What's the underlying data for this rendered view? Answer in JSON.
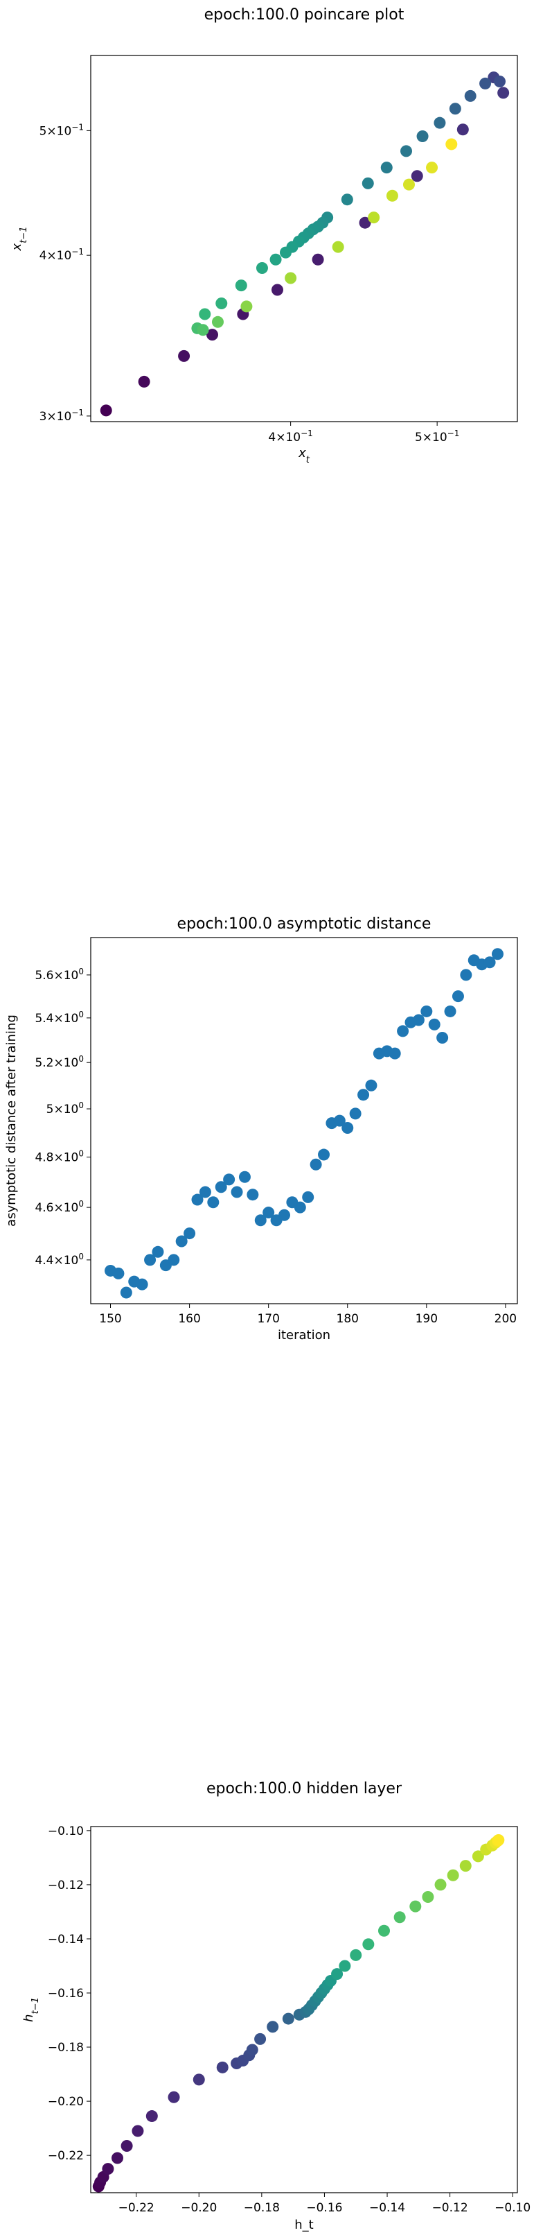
{
  "chart_data": [
    {
      "type": "scatter",
      "title": "epoch:100.0 poincare plot",
      "xlabel": "x_t",
      "ylabel": "x_{t-1}",
      "xscale": "log",
      "yscale": "log",
      "xlim": [
        0.295,
        0.565
      ],
      "ylim": [
        0.297,
        0.572
      ],
      "xticks": [
        {
          "value": 0.4,
          "base": "4×10",
          "exp": "−1"
        },
        {
          "value": 0.5,
          "base": "5×10",
          "exp": "−1"
        }
      ],
      "yticks": [
        {
          "value": 0.3,
          "base": "3×10",
          "exp": "−1"
        },
        {
          "value": 0.4,
          "base": "4×10",
          "exp": "−1"
        },
        {
          "value": 0.5,
          "base": "5×10",
          "exp": "−1"
        }
      ],
      "colormap": "viridis",
      "points": [
        {
          "x": 0.302,
          "y": 0.303,
          "c": 0.0
        },
        {
          "x": 0.32,
          "y": 0.319,
          "c": 0.02
        },
        {
          "x": 0.34,
          "y": 0.334,
          "c": 0.04
        },
        {
          "x": 0.355,
          "y": 0.347,
          "c": 0.05
        },
        {
          "x": 0.372,
          "y": 0.36,
          "c": 0.06
        },
        {
          "x": 0.392,
          "y": 0.376,
          "c": 0.07
        },
        {
          "x": 0.417,
          "y": 0.397,
          "c": 0.08
        },
        {
          "x": 0.448,
          "y": 0.424,
          "c": 0.1
        },
        {
          "x": 0.485,
          "y": 0.461,
          "c": 0.12
        },
        {
          "x": 0.52,
          "y": 0.501,
          "c": 0.14
        },
        {
          "x": 0.553,
          "y": 0.535,
          "c": 0.16
        },
        {
          "x": 0.545,
          "y": 0.55,
          "c": 0.2
        },
        {
          "x": 0.55,
          "y": 0.546,
          "c": 0.24
        },
        {
          "x": 0.538,
          "y": 0.544,
          "c": 0.27
        },
        {
          "x": 0.526,
          "y": 0.532,
          "c": 0.3
        },
        {
          "x": 0.514,
          "y": 0.52,
          "c": 0.32
        },
        {
          "x": 0.502,
          "y": 0.507,
          "c": 0.35
        },
        {
          "x": 0.489,
          "y": 0.495,
          "c": 0.38
        },
        {
          "x": 0.477,
          "y": 0.482,
          "c": 0.4
        },
        {
          "x": 0.463,
          "y": 0.468,
          "c": 0.42
        },
        {
          "x": 0.45,
          "y": 0.455,
          "c": 0.44
        },
        {
          "x": 0.436,
          "y": 0.442,
          "c": 0.46
        },
        {
          "x": 0.423,
          "y": 0.428,
          "c": 0.49
        },
        {
          "x": 0.42,
          "y": 0.424,
          "c": 0.5
        },
        {
          "x": 0.417,
          "y": 0.421,
          "c": 0.51
        },
        {
          "x": 0.414,
          "y": 0.419,
          "c": 0.52
        },
        {
          "x": 0.411,
          "y": 0.416,
          "c": 0.53
        },
        {
          "x": 0.408,
          "y": 0.413,
          "c": 0.54
        },
        {
          "x": 0.405,
          "y": 0.41,
          "c": 0.55
        },
        {
          "x": 0.401,
          "y": 0.406,
          "c": 0.56
        },
        {
          "x": 0.397,
          "y": 0.402,
          "c": 0.57
        },
        {
          "x": 0.391,
          "y": 0.397,
          "c": 0.58
        },
        {
          "x": 0.383,
          "y": 0.391,
          "c": 0.6
        },
        {
          "x": 0.371,
          "y": 0.379,
          "c": 0.62
        },
        {
          "x": 0.36,
          "y": 0.367,
          "c": 0.64
        },
        {
          "x": 0.351,
          "y": 0.36,
          "c": 0.66
        },
        {
          "x": 0.347,
          "y": 0.351,
          "c": 0.7
        },
        {
          "x": 0.35,
          "y": 0.35,
          "c": 0.72
        },
        {
          "x": 0.358,
          "y": 0.355,
          "c": 0.76
        },
        {
          "x": 0.374,
          "y": 0.365,
          "c": 0.82
        },
        {
          "x": 0.4,
          "y": 0.384,
          "c": 0.86
        },
        {
          "x": 0.43,
          "y": 0.406,
          "c": 0.88
        },
        {
          "x": 0.454,
          "y": 0.428,
          "c": 0.9
        },
        {
          "x": 0.467,
          "y": 0.445,
          "c": 0.92
        },
        {
          "x": 0.479,
          "y": 0.454,
          "c": 0.94
        },
        {
          "x": 0.496,
          "y": 0.468,
          "c": 0.96
        },
        {
          "x": 0.511,
          "y": 0.488,
          "c": 1.0
        }
      ]
    },
    {
      "type": "scatter",
      "title": "epoch:100.0 asymptotic distance",
      "xlabel": "iteration",
      "ylabel": "asymptotic distance after training",
      "yscale": "log",
      "xlim": [
        147.5,
        201.5
      ],
      "ylim": [
        4.24,
        5.78
      ],
      "xticks": [
        150,
        160,
        170,
        180,
        190,
        200
      ],
      "yticks": [
        {
          "value": 4.4,
          "base": "4.4×10",
          "exp": "0"
        },
        {
          "value": 4.6,
          "base": "4.6×10",
          "exp": "0"
        },
        {
          "value": 4.8,
          "base": "4.8×10",
          "exp": "0"
        },
        {
          "value": 5.0,
          "base": "5×10",
          "exp": "0"
        },
        {
          "value": 5.2,
          "base": "5.2×10",
          "exp": "0"
        },
        {
          "value": 5.4,
          "base": "5.4×10",
          "exp": "0"
        },
        {
          "value": 5.6,
          "base": "5.6×10",
          "exp": "0"
        }
      ],
      "marker_color": "#1f77b4",
      "x": [
        150,
        151,
        152,
        153,
        154,
        155,
        156,
        157,
        158,
        159,
        160,
        161,
        162,
        163,
        164,
        165,
        166,
        167,
        168,
        169,
        170,
        171,
        172,
        173,
        174,
        175,
        176,
        177,
        178,
        179,
        180,
        181,
        182,
        183,
        184,
        185,
        186,
        187,
        188,
        189,
        190,
        191,
        192,
        193,
        194,
        195,
        196,
        197,
        198,
        199
      ],
      "y": [
        4.36,
        4.35,
        4.28,
        4.32,
        4.31,
        4.4,
        4.43,
        4.38,
        4.4,
        4.47,
        4.5,
        4.63,
        4.66,
        4.62,
        4.68,
        4.71,
        4.66,
        4.72,
        4.65,
        4.55,
        4.58,
        4.55,
        4.57,
        4.62,
        4.6,
        4.64,
        4.77,
        4.81,
        4.94,
        4.95,
        4.92,
        4.98,
        5.06,
        5.1,
        5.24,
        5.25,
        5.24,
        5.34,
        5.38,
        5.39,
        5.43,
        5.37,
        5.31,
        5.43,
        5.5,
        5.6,
        5.67,
        5.65,
        5.66,
        5.7
      ]
    },
    {
      "type": "scatter",
      "title": "epoch:100.0 hidden layer",
      "xlabel": "h_t",
      "ylabel": "h_{t-1}",
      "xlim": [
        -0.2345,
        -0.0985
      ],
      "ylim": [
        -0.2338,
        -0.0985
      ],
      "xticks": [
        -0.22,
        -0.2,
        -0.18,
        -0.16,
        -0.14,
        -0.12,
        -0.1
      ],
      "xtick_labels": [
        "−0.22",
        "−0.20",
        "−0.18",
        "−0.16",
        "−0.14",
        "−0.12",
        "−0.10"
      ],
      "yticks": [
        -0.22,
        -0.2,
        -0.18,
        -0.16,
        -0.14,
        -0.12,
        -0.1
      ],
      "ytick_labels": [
        "−0.22",
        "−0.20",
        "−0.18",
        "−0.16",
        "−0.14",
        "−0.12",
        "−0.10"
      ],
      "colormap": "viridis",
      "points": [
        {
          "x": -0.232,
          "y": -0.2315,
          "c": 0.0
        },
        {
          "x": -0.2315,
          "y": -0.23,
          "c": 0.01
        },
        {
          "x": -0.2305,
          "y": -0.228,
          "c": 0.02
        },
        {
          "x": -0.229,
          "y": -0.225,
          "c": 0.03
        },
        {
          "x": -0.226,
          "y": -0.221,
          "c": 0.04
        },
        {
          "x": -0.223,
          "y": -0.2165,
          "c": 0.06
        },
        {
          "x": -0.2195,
          "y": -0.211,
          "c": 0.08
        },
        {
          "x": -0.215,
          "y": -0.2055,
          "c": 0.1
        },
        {
          "x": -0.208,
          "y": -0.1985,
          "c": 0.13
        },
        {
          "x": -0.2,
          "y": -0.192,
          "c": 0.16
        },
        {
          "x": -0.1925,
          "y": -0.1875,
          "c": 0.19
        },
        {
          "x": -0.188,
          "y": -0.186,
          "c": 0.21
        },
        {
          "x": -0.186,
          "y": -0.185,
          "c": 0.22
        },
        {
          "x": -0.184,
          "y": -0.183,
          "c": 0.23
        },
        {
          "x": -0.183,
          "y": -0.181,
          "c": 0.24
        },
        {
          "x": -0.1805,
          "y": -0.177,
          "c": 0.26
        },
        {
          "x": -0.1765,
          "y": -0.1725,
          "c": 0.29
        },
        {
          "x": -0.1715,
          "y": -0.1695,
          "c": 0.32
        },
        {
          "x": -0.168,
          "y": -0.168,
          "c": 0.35
        },
        {
          "x": -0.166,
          "y": -0.167,
          "c": 0.38
        },
        {
          "x": -0.165,
          "y": -0.166,
          "c": 0.4
        },
        {
          "x": -0.164,
          "y": -0.1645,
          "c": 0.42
        },
        {
          "x": -0.163,
          "y": -0.163,
          "c": 0.44
        },
        {
          "x": -0.162,
          "y": -0.1615,
          "c": 0.46
        },
        {
          "x": -0.161,
          "y": -0.16,
          "c": 0.48
        },
        {
          "x": -0.16,
          "y": -0.1585,
          "c": 0.5
        },
        {
          "x": -0.159,
          "y": -0.157,
          "c": 0.52
        },
        {
          "x": -0.158,
          "y": -0.1555,
          "c": 0.54
        },
        {
          "x": -0.156,
          "y": -0.153,
          "c": 0.57
        },
        {
          "x": -0.1535,
          "y": -0.15,
          "c": 0.6
        },
        {
          "x": -0.15,
          "y": -0.146,
          "c": 0.63
        },
        {
          "x": -0.146,
          "y": -0.142,
          "c": 0.66
        },
        {
          "x": -0.141,
          "y": -0.137,
          "c": 0.69
        },
        {
          "x": -0.136,
          "y": -0.132,
          "c": 0.72
        },
        {
          "x": -0.131,
          "y": -0.128,
          "c": 0.75
        },
        {
          "x": -0.127,
          "y": -0.1245,
          "c": 0.78
        },
        {
          "x": -0.123,
          "y": -0.12,
          "c": 0.81
        },
        {
          "x": -0.119,
          "y": -0.1165,
          "c": 0.84
        },
        {
          "x": -0.115,
          "y": -0.113,
          "c": 0.87
        },
        {
          "x": -0.111,
          "y": -0.1095,
          "c": 0.9
        },
        {
          "x": -0.1085,
          "y": -0.107,
          "c": 0.93
        },
        {
          "x": -0.1065,
          "y": -0.1055,
          "c": 0.95
        },
        {
          "x": -0.1055,
          "y": -0.1045,
          "c": 0.97
        },
        {
          "x": -0.1048,
          "y": -0.1038,
          "c": 0.99
        },
        {
          "x": -0.1045,
          "y": -0.1035,
          "c": 1.0
        }
      ]
    }
  ]
}
